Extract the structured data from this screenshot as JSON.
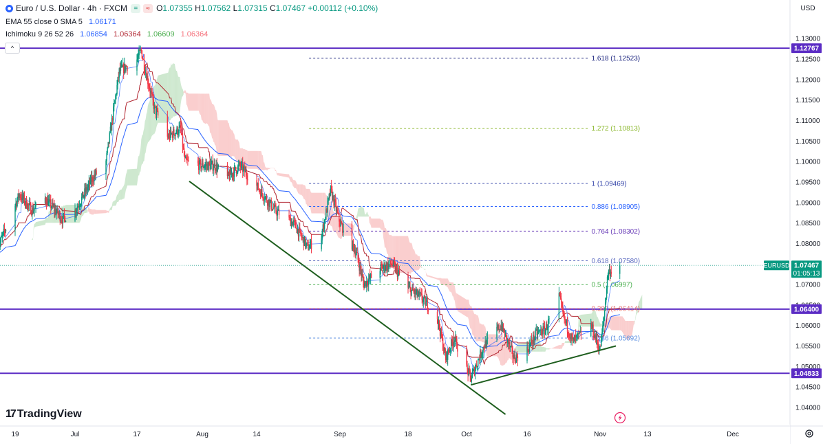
{
  "header": {
    "symbol": "Euro / U.S. Dollar · 4h · FXCM",
    "ohlc": [
      {
        "k": "O",
        "v": "1.07355"
      },
      {
        "k": "H",
        "v": "1.07562"
      },
      {
        "k": "L",
        "v": "1.07315"
      },
      {
        "k": "C",
        "v": "1.07467"
      }
    ],
    "change": "+0.00112 (+0.10%)",
    "pill_green": "=",
    "pill_red": "≈",
    "ema_label": "EMA 55 close 0 SMA 5",
    "ema_value": "1.06171",
    "ichimoku_label": "Ichimoku 9 26 52 26",
    "ichimoku_values": [
      "1.06854",
      "1.06364",
      "1.06609",
      "1.06364"
    ],
    "currency": "USD",
    "collapse_icon": "^"
  },
  "logo": {
    "mark": "17",
    "text": "TradingView"
  },
  "colors": {
    "up": "#089981",
    "down": "#f23645",
    "level": "#5b2cc4",
    "trend": "#1e5e1e",
    "ema": "#2962ff",
    "tenkan": "#2962ff",
    "kijun": "#b22833",
    "cloud_bull": "#a5d6a7",
    "cloud_bear": "#f5a6a6",
    "price_tag": "#089981"
  },
  "chart_data": {
    "type": "candlestick",
    "title": "Euro / U.S. Dollar · 4h · FXCM",
    "timeframe": "4h",
    "ylim": [
      1.0358,
      1.1344
    ],
    "y_ticks": [
      "1.13000",
      "1.12500",
      "1.12000",
      "1.11500",
      "1.11000",
      "1.10500",
      "1.10000",
      "1.09500",
      "1.09000",
      "1.08500",
      "1.08000",
      "1.07500",
      "1.07000",
      "1.06500",
      "1.06000",
      "1.05500",
      "1.05000",
      "1.04500",
      "1.04000"
    ],
    "x_ticks": [
      {
        "label": "19",
        "date": "2023-06-19"
      },
      {
        "label": "Jul",
        "date": "2023-07-03"
      },
      {
        "label": "17",
        "date": "2023-07-17"
      },
      {
        "label": "Aug",
        "date": "2023-08-01"
      },
      {
        "label": "14",
        "date": "2023-08-14"
      },
      {
        "label": "Sep",
        "date": "2023-09-01"
      },
      {
        "label": "18",
        "date": "2023-09-18"
      },
      {
        "label": "Oct",
        "date": "2023-10-02"
      },
      {
        "label": "16",
        "date": "2023-10-16"
      },
      {
        "label": "Nov",
        "date": "2023-11-01"
      },
      {
        "label": "13",
        "date": "2023-11-13"
      },
      {
        "label": "Dec",
        "date": "2023-12-01"
      }
    ],
    "price_path": [
      [
        "2023-06-15",
        1.079
      ],
      [
        "2023-06-20",
        1.092
      ],
      [
        "2023-06-23",
        1.088
      ],
      [
        "2023-06-26",
        1.091
      ],
      [
        "2023-06-30",
        1.086
      ],
      [
        "2023-07-03",
        1.088
      ],
      [
        "2023-07-07",
        1.096
      ],
      [
        "2023-07-10",
        1.1
      ],
      [
        "2023-07-13",
        1.122
      ],
      [
        "2023-07-17",
        1.125
      ],
      [
        "2023-07-18",
        1.127
      ],
      [
        "2023-07-19",
        1.122
      ],
      [
        "2023-07-21",
        1.113
      ],
      [
        "2023-07-24",
        1.106
      ],
      [
        "2023-07-27",
        1.108
      ],
      [
        "2023-07-28",
        1.1
      ],
      [
        "2023-08-01",
        1.099
      ],
      [
        "2023-08-04",
        1.099
      ],
      [
        "2023-08-07",
        1.096
      ],
      [
        "2023-08-10",
        1.099
      ],
      [
        "2023-08-14",
        1.094
      ],
      [
        "2023-08-18",
        1.088
      ],
      [
        "2023-08-22",
        1.085
      ],
      [
        "2023-08-25",
        1.079
      ],
      [
        "2023-08-28",
        1.082
      ],
      [
        "2023-08-30",
        1.093
      ],
      [
        "2023-09-01",
        1.085
      ],
      [
        "2023-09-05",
        1.078
      ],
      [
        "2023-09-07",
        1.07
      ],
      [
        "2023-09-11",
        1.074
      ],
      [
        "2023-09-14",
        1.075
      ],
      [
        "2023-09-18",
        1.069
      ],
      [
        "2023-09-21",
        1.067
      ],
      [
        "2023-09-25",
        1.062
      ],
      [
        "2023-09-27",
        1.052
      ],
      [
        "2023-09-29",
        1.057
      ],
      [
        "2023-10-03",
        1.047
      ],
      [
        "2023-10-06",
        1.055
      ],
      [
        "2023-10-10",
        1.06
      ],
      [
        "2023-10-13",
        1.052
      ],
      [
        "2023-10-16",
        1.054
      ],
      [
        "2023-10-18",
        1.058
      ],
      [
        "2023-10-20",
        1.059
      ],
      [
        "2023-10-23",
        1.067
      ],
      [
        "2023-10-24",
        1.062
      ],
      [
        "2023-10-26",
        1.056
      ],
      [
        "2023-10-30",
        1.06
      ],
      [
        "2023-10-31",
        1.057
      ],
      [
        "2023-11-01",
        1.054
      ],
      [
        "2023-11-02",
        1.062
      ],
      [
        "2023-11-03",
        1.073
      ],
      [
        "2023-11-06",
        1.0745
      ]
    ],
    "last_price": {
      "label": "EURUSD",
      "value": "1.07467",
      "countdown": "01:05:13"
    },
    "horizontal_levels": [
      {
        "value": 1.12767,
        "label": "1.12767"
      },
      {
        "value": 1.064,
        "label": "1.06400"
      },
      {
        "value": 1.04833,
        "label": "1.04833"
      }
    ],
    "fibonacci": {
      "x_range": [
        "2023-08-28",
        "2023-11-07"
      ],
      "levels": [
        {
          "ratio": "1.618",
          "price": "1.12523",
          "color": "#1a237e"
        },
        {
          "ratio": "1.272",
          "price": "1.10813",
          "color": "#8bb82d"
        },
        {
          "ratio": "1",
          "price": "1.09469",
          "color": "#3949ab"
        },
        {
          "ratio": "0.886",
          "price": "1.08905",
          "color": "#2962ff"
        },
        {
          "ratio": "0.764",
          "price": "1.08302",
          "color": "#673ab7"
        },
        {
          "ratio": "0.618",
          "price": "1.07580",
          "color": "#5c6bc0"
        },
        {
          "ratio": "0.5",
          "price": "1.06997",
          "color": "#4caf50"
        },
        {
          "ratio": "0.382",
          "price": "1.06414",
          "color": "#e57373"
        },
        {
          "ratio": "0.236",
          "price": "1.05692",
          "color": "#5c8fe0"
        }
      ]
    },
    "trendlines": [
      {
        "from": [
          "2023-07-29",
          1.0952
        ],
        "to": [
          "2023-10-11",
          1.0383
        ]
      },
      {
        "from": [
          "2023-10-03",
          1.0455
        ],
        "to": [
          "2023-11-05",
          1.055
        ]
      }
    ],
    "marker_icon": "lightning-icon",
    "settings_icon": "gear-icon",
    "grid": false
  }
}
